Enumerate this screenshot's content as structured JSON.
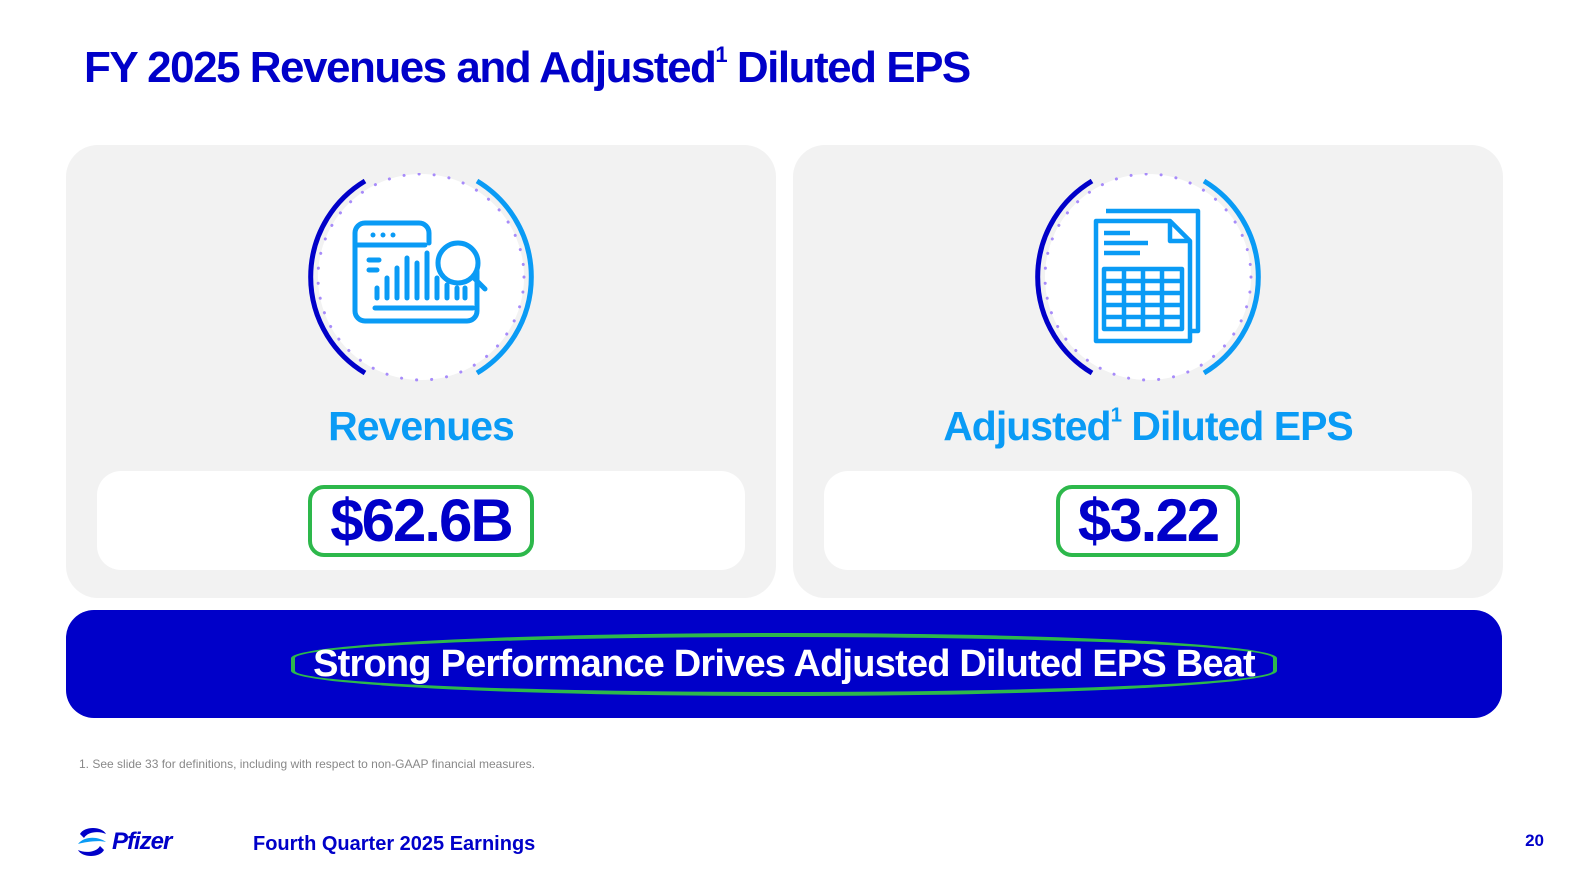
{
  "title": {
    "main": "FY 2025 Revenues and Adjusted",
    "sup": "1",
    "rest": " Diluted EPS"
  },
  "cards": [
    {
      "label": "Revenues",
      "value": "$62.6B",
      "icon": "analytics-dashboard-icon"
    },
    {
      "label": "Adjusted",
      "label_sup": "1",
      "label_rest": " Diluted EPS",
      "value": "$3.22",
      "icon": "spreadsheet-document-icon"
    }
  ],
  "banner": "Strong Performance Drives Adjusted Diluted EPS Beat",
  "footnote": "1. See slide 33 for definitions, including with respect to non-GAAP financial measures.",
  "footer": {
    "logo": "Pfizer",
    "event": "Fourth Quarter 2025 Earnings",
    "page": "20"
  },
  "colors": {
    "brand": "#0000C9",
    "accent": "#0A9BF5",
    "highlight": "#2DB84B"
  }
}
